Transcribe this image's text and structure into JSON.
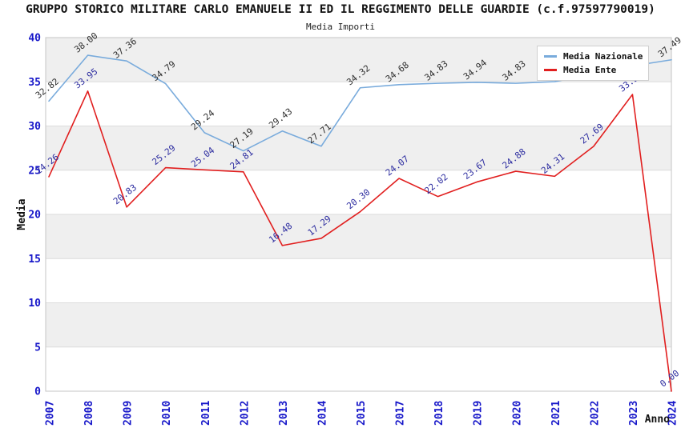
{
  "header": {
    "title": "GRUPPO STORICO MILITARE CARLO EMANUELE II ED IL REGGIMENTO DELLE GUARDIE (c.f.97597790019)",
    "subtitle": "Media Importi"
  },
  "legend": {
    "items": [
      {
        "label": "Media Nazionale",
        "color": "#79ABDC"
      },
      {
        "label": "Media Ente",
        "color": "#E11F1F"
      }
    ]
  },
  "axes": {
    "x_title": "Anno",
    "y_title": "Media",
    "y_ticks": [
      "0",
      "5",
      "10",
      "15",
      "20",
      "25",
      "30",
      "35",
      "40"
    ]
  },
  "chart_data": {
    "type": "line",
    "title": "GRUPPO STORICO MILITARE CARLO EMANUELE II ED IL REGGIMENTO DELLE GUARDIE (c.f.97597790019)",
    "subtitle": "Media Importi",
    "xlabel": "Anno",
    "ylabel": "Media",
    "ylim": [
      0,
      40
    ],
    "yticks": [
      0,
      5,
      10,
      15,
      20,
      25,
      30,
      35,
      40
    ],
    "grid": true,
    "legend_position": "top-right",
    "categories": [
      "2007",
      "2008",
      "2009",
      "2010",
      "2011",
      "2012",
      "2013",
      "2014",
      "2015",
      "2017",
      "2018",
      "2019",
      "2020",
      "2021",
      "2022",
      "2023",
      "2024"
    ],
    "series": [
      {
        "name": "Media Nazionale",
        "color": "#79ABDC",
        "label_color": "#2F2F2F",
        "values": [
          32.82,
          38.0,
          37.36,
          34.79,
          29.24,
          27.19,
          29.43,
          27.71,
          34.32,
          34.68,
          34.83,
          34.94,
          34.83,
          35.02,
          35.9,
          36.8,
          37.49
        ],
        "labels": [
          "32.82",
          "38.00",
          "37.36",
          "34.79",
          "29.24",
          "27.19",
          "29.43",
          "27.71",
          "34.32",
          "34.68",
          "34.83",
          "34.94",
          "34.83",
          "",
          "",
          "",
          "37.49"
        ]
      },
      {
        "name": "Media Ente",
        "color": "#E11F1F",
        "label_color": "#2D2DA0",
        "values": [
          24.26,
          33.95,
          20.83,
          25.29,
          25.04,
          24.81,
          16.48,
          17.29,
          20.3,
          24.07,
          22.02,
          23.67,
          24.88,
          24.31,
          27.69,
          33.57,
          0.0
        ],
        "labels": [
          "24.26",
          "33.95",
          "20.83",
          "25.29",
          "25.04",
          "24.81",
          "16.48",
          "17.29",
          "20.30",
          "24.07",
          "22.02",
          "23.67",
          "24.88",
          "24.31",
          "27.69",
          "33.57",
          "0.00"
        ]
      }
    ]
  },
  "colors": {
    "tick_label": "#1717C9",
    "band": "#EFEFEF",
    "gridline": "#DBDBDB",
    "plot_border": "#C5C5C5",
    "title_text": "#111111",
    "axis_title": "#111111",
    "legend_bg": "#FFFFFF",
    "legend_border": "#CFCFCF"
  }
}
